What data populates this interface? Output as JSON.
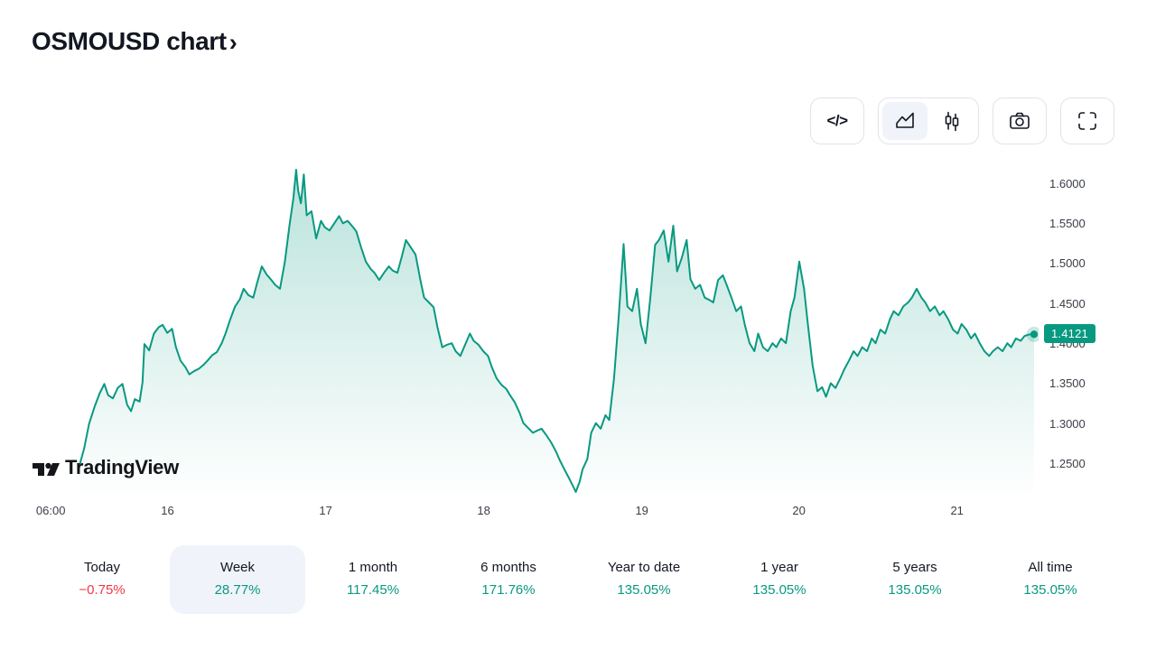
{
  "header": {
    "title": "OSMOUSD chart",
    "chevron": "›"
  },
  "colors": {
    "accent": "#089981",
    "negative": "#f23645",
    "active_pill": "#f0f3fa",
    "border": "#e0e3eb"
  },
  "toolbar": {
    "code_glyph": "</>"
  },
  "watermark": {
    "text": "TradingView"
  },
  "chart_data": {
    "type": "area",
    "symbol": "OSMOUSD",
    "title": "OSMOUSD chart",
    "last_price": "1.4121",
    "line_color": "#089981",
    "fill_top_opacity": 0.28,
    "fill_bottom_opacity": 0.0,
    "grid": false,
    "legend_position": "none",
    "ylim": [
      1.207,
      1.627
    ],
    "y_ticks": [
      "1.6000",
      "1.5500",
      "1.5000",
      "1.4500",
      "1.4000",
      "1.3500",
      "1.3000",
      "1.2500"
    ],
    "x_ticks": [
      {
        "label": "06:00",
        "pos": 0.019
      },
      {
        "label": "16",
        "pos": 0.135
      },
      {
        "label": "17",
        "pos": 0.292
      },
      {
        "label": "18",
        "pos": 0.449
      },
      {
        "label": "19",
        "pos": 0.606
      },
      {
        "label": "20",
        "pos": 0.762
      },
      {
        "label": "21",
        "pos": 0.919
      }
    ],
    "points": [
      [
        0.0,
        1.248
      ],
      [
        0.005,
        1.27
      ],
      [
        0.01,
        1.3
      ],
      [
        0.016,
        1.322
      ],
      [
        0.021,
        1.338
      ],
      [
        0.026,
        1.35
      ],
      [
        0.03,
        1.336
      ],
      [
        0.035,
        1.332
      ],
      [
        0.04,
        1.345
      ],
      [
        0.045,
        1.35
      ],
      [
        0.05,
        1.324
      ],
      [
        0.054,
        1.316
      ],
      [
        0.058,
        1.331
      ],
      [
        0.063,
        1.328
      ],
      [
        0.066,
        1.352
      ],
      [
        0.068,
        1.4
      ],
      [
        0.073,
        1.392
      ],
      [
        0.078,
        1.413
      ],
      [
        0.083,
        1.421
      ],
      [
        0.087,
        1.424
      ],
      [
        0.092,
        1.414
      ],
      [
        0.097,
        1.419
      ],
      [
        0.101,
        1.396
      ],
      [
        0.106,
        1.379
      ],
      [
        0.111,
        1.371
      ],
      [
        0.115,
        1.362
      ],
      [
        0.12,
        1.366
      ],
      [
        0.125,
        1.369
      ],
      [
        0.13,
        1.374
      ],
      [
        0.134,
        1.379
      ],
      [
        0.139,
        1.386
      ],
      [
        0.144,
        1.39
      ],
      [
        0.149,
        1.401
      ],
      [
        0.153,
        1.413
      ],
      [
        0.158,
        1.431
      ],
      [
        0.163,
        1.447
      ],
      [
        0.168,
        1.456
      ],
      [
        0.172,
        1.469
      ],
      [
        0.177,
        1.461
      ],
      [
        0.182,
        1.458
      ],
      [
        0.186,
        1.476
      ],
      [
        0.191,
        1.497
      ],
      [
        0.196,
        1.487
      ],
      [
        0.201,
        1.48
      ],
      [
        0.205,
        1.474
      ],
      [
        0.21,
        1.469
      ],
      [
        0.215,
        1.502
      ],
      [
        0.22,
        1.548
      ],
      [
        0.224,
        1.582
      ],
      [
        0.227,
        1.618
      ],
      [
        0.229,
        1.592
      ],
      [
        0.232,
        1.576
      ],
      [
        0.235,
        1.612
      ],
      [
        0.238,
        1.561
      ],
      [
        0.243,
        1.566
      ],
      [
        0.248,
        1.532
      ],
      [
        0.253,
        1.554
      ],
      [
        0.257,
        1.546
      ],
      [
        0.262,
        1.542
      ],
      [
        0.267,
        1.551
      ],
      [
        0.272,
        1.56
      ],
      [
        0.276,
        1.551
      ],
      [
        0.281,
        1.554
      ],
      [
        0.286,
        1.547
      ],
      [
        0.29,
        1.541
      ],
      [
        0.295,
        1.521
      ],
      [
        0.3,
        1.503
      ],
      [
        0.305,
        1.494
      ],
      [
        0.309,
        1.489
      ],
      [
        0.314,
        1.48
      ],
      [
        0.319,
        1.489
      ],
      [
        0.324,
        1.497
      ],
      [
        0.328,
        1.492
      ],
      [
        0.333,
        1.489
      ],
      [
        0.338,
        1.511
      ],
      [
        0.342,
        1.53
      ],
      [
        0.347,
        1.521
      ],
      [
        0.352,
        1.512
      ],
      [
        0.357,
        1.481
      ],
      [
        0.361,
        1.458
      ],
      [
        0.366,
        1.452
      ],
      [
        0.371,
        1.446
      ],
      [
        0.375,
        1.421
      ],
      [
        0.38,
        1.396
      ],
      [
        0.385,
        1.399
      ],
      [
        0.39,
        1.401
      ],
      [
        0.394,
        1.391
      ],
      [
        0.399,
        1.385
      ],
      [
        0.404,
        1.399
      ],
      [
        0.409,
        1.413
      ],
      [
        0.413,
        1.404
      ],
      [
        0.418,
        1.399
      ],
      [
        0.423,
        1.391
      ],
      [
        0.428,
        1.385
      ],
      [
        0.432,
        1.371
      ],
      [
        0.437,
        1.357
      ],
      [
        0.442,
        1.349
      ],
      [
        0.447,
        1.344
      ],
      [
        0.451,
        1.336
      ],
      [
        0.456,
        1.327
      ],
      [
        0.461,
        1.314
      ],
      [
        0.465,
        1.301
      ],
      [
        0.47,
        1.295
      ],
      [
        0.475,
        1.289
      ],
      [
        0.48,
        1.292
      ],
      [
        0.484,
        1.294
      ],
      [
        0.489,
        1.286
      ],
      [
        0.494,
        1.277
      ],
      [
        0.499,
        1.266
      ],
      [
        0.503,
        1.255
      ],
      [
        0.508,
        1.243
      ],
      [
        0.513,
        1.232
      ],
      [
        0.52,
        1.215
      ],
      [
        0.524,
        1.228
      ],
      [
        0.527,
        1.243
      ],
      [
        0.532,
        1.256
      ],
      [
        0.536,
        1.289
      ],
      [
        0.541,
        1.301
      ],
      [
        0.546,
        1.294
      ],
      [
        0.551,
        1.311
      ],
      [
        0.555,
        1.305
      ],
      [
        0.56,
        1.357
      ],
      [
        0.565,
        1.436
      ],
      [
        0.57,
        1.525
      ],
      [
        0.574,
        1.447
      ],
      [
        0.579,
        1.441
      ],
      [
        0.584,
        1.469
      ],
      [
        0.588,
        1.425
      ],
      [
        0.593,
        1.401
      ],
      [
        0.598,
        1.458
      ],
      [
        0.603,
        1.524
      ],
      [
        0.607,
        1.53
      ],
      [
        0.612,
        1.542
      ],
      [
        0.617,
        1.503
      ],
      [
        0.622,
        1.548
      ],
      [
        0.626,
        1.491
      ],
      [
        0.631,
        1.508
      ],
      [
        0.636,
        1.53
      ],
      [
        0.64,
        1.481
      ],
      [
        0.645,
        1.469
      ],
      [
        0.65,
        1.474
      ],
      [
        0.655,
        1.458
      ],
      [
        0.66,
        1.455
      ],
      [
        0.664,
        1.452
      ],
      [
        0.669,
        1.48
      ],
      [
        0.674,
        1.486
      ],
      [
        0.678,
        1.474
      ],
      [
        0.683,
        1.458
      ],
      [
        0.688,
        1.441
      ],
      [
        0.693,
        1.447
      ],
      [
        0.697,
        1.424
      ],
      [
        0.702,
        1.401
      ],
      [
        0.707,
        1.391
      ],
      [
        0.711,
        1.413
      ],
      [
        0.716,
        1.396
      ],
      [
        0.721,
        1.391
      ],
      [
        0.726,
        1.401
      ],
      [
        0.73,
        1.396
      ],
      [
        0.735,
        1.407
      ],
      [
        0.74,
        1.401
      ],
      [
        0.745,
        1.441
      ],
      [
        0.749,
        1.458
      ],
      [
        0.754,
        1.503
      ],
      [
        0.759,
        1.469
      ],
      [
        0.763,
        1.425
      ],
      [
        0.768,
        1.373
      ],
      [
        0.773,
        1.341
      ],
      [
        0.778,
        1.346
      ],
      [
        0.782,
        1.334
      ],
      [
        0.787,
        1.351
      ],
      [
        0.792,
        1.345
      ],
      [
        0.797,
        1.357
      ],
      [
        0.801,
        1.368
      ],
      [
        0.806,
        1.379
      ],
      [
        0.811,
        1.391
      ],
      [
        0.815,
        1.385
      ],
      [
        0.82,
        1.396
      ],
      [
        0.825,
        1.391
      ],
      [
        0.83,
        1.407
      ],
      [
        0.834,
        1.401
      ],
      [
        0.839,
        1.418
      ],
      [
        0.844,
        1.413
      ],
      [
        0.849,
        1.431
      ],
      [
        0.853,
        1.441
      ],
      [
        0.858,
        1.436
      ],
      [
        0.863,
        1.447
      ],
      [
        0.868,
        1.452
      ],
      [
        0.872,
        1.458
      ],
      [
        0.877,
        1.469
      ],
      [
        0.882,
        1.458
      ],
      [
        0.886,
        1.452
      ],
      [
        0.891,
        1.441
      ],
      [
        0.896,
        1.447
      ],
      [
        0.901,
        1.436
      ],
      [
        0.905,
        1.441
      ],
      [
        0.91,
        1.431
      ],
      [
        0.915,
        1.418
      ],
      [
        0.92,
        1.413
      ],
      [
        0.924,
        1.425
      ],
      [
        0.929,
        1.418
      ],
      [
        0.934,
        1.407
      ],
      [
        0.938,
        1.413
      ],
      [
        0.943,
        1.401
      ],
      [
        0.948,
        1.391
      ],
      [
        0.953,
        1.385
      ],
      [
        0.957,
        1.391
      ],
      [
        0.962,
        1.396
      ],
      [
        0.967,
        1.391
      ],
      [
        0.972,
        1.401
      ],
      [
        0.976,
        1.396
      ],
      [
        0.981,
        1.407
      ],
      [
        0.986,
        1.404
      ],
      [
        0.99,
        1.41
      ],
      [
        0.995,
        1.412
      ],
      [
        1.0,
        1.4121
      ]
    ]
  },
  "periods": [
    {
      "label": "Today",
      "value": "−0.75%",
      "direction": "down",
      "active": false
    },
    {
      "label": "Week",
      "value": "28.77%",
      "direction": "up",
      "active": true
    },
    {
      "label": "1 month",
      "value": "117.45%",
      "direction": "up",
      "active": false
    },
    {
      "label": "6 months",
      "value": "171.76%",
      "direction": "up",
      "active": false
    },
    {
      "label": "Year to date",
      "value": "135.05%",
      "direction": "up",
      "active": false
    },
    {
      "label": "1 year",
      "value": "135.05%",
      "direction": "up",
      "active": false
    },
    {
      "label": "5 years",
      "value": "135.05%",
      "direction": "up",
      "active": false
    },
    {
      "label": "All time",
      "value": "135.05%",
      "direction": "up",
      "active": false
    }
  ]
}
